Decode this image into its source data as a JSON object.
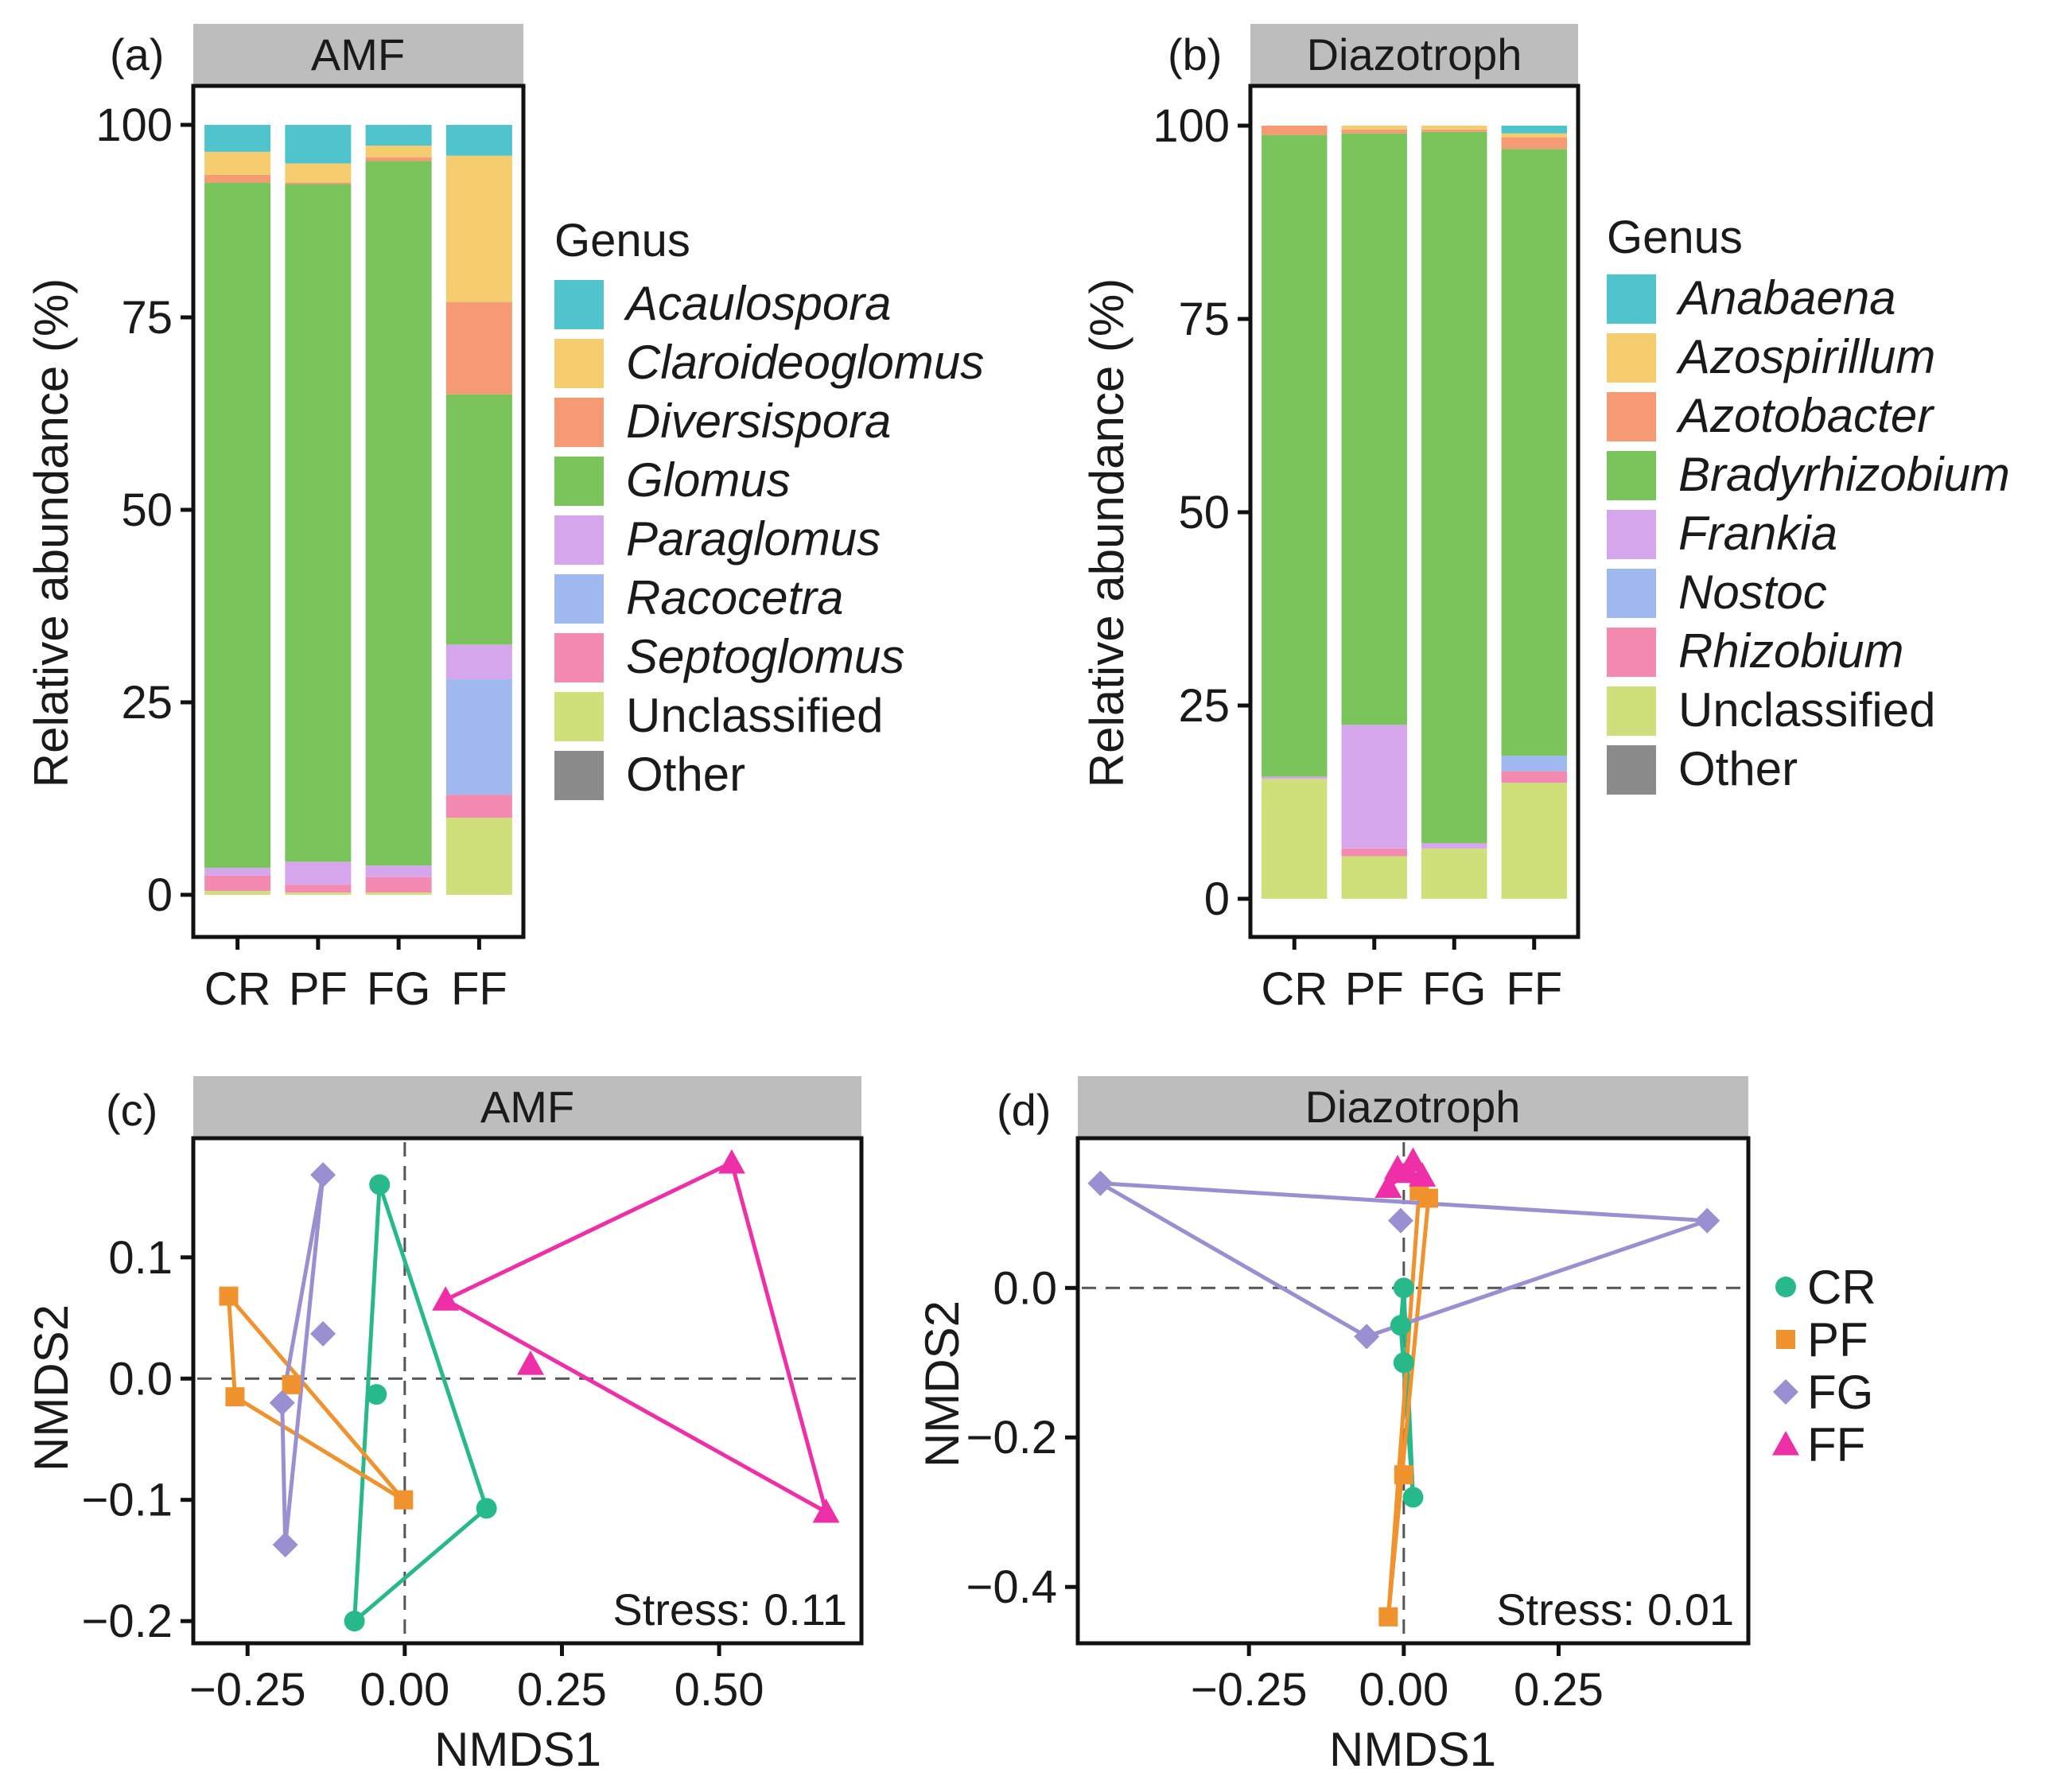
{
  "colors": {
    "Acaulospora": "#4fc4cc",
    "Claroideoglomus": "#f5cd6f",
    "Diversispora": "#f59a72",
    "Glomus": "#79c55c",
    "Paraglomus": "#d6a6ec",
    "Racocetra": "#9fb8f0",
    "Septoglomus": "#f58ab0",
    "Unclassified": "#cfe07a",
    "Other": "#8a8a8a",
    "Anabaena": "#4fc4cc",
    "Azospirillum": "#f5cd6f",
    "Azotobacter": "#f59a72",
    "Bradyrhizobium": "#79c55c",
    "Frankia": "#d6a6ec",
    "Nostoc": "#9fb8f0",
    "Rhizobium": "#f58ab0",
    "CR": "#27b98a",
    "PF": "#f0922e",
    "FG": "#9a8fd0",
    "FF": "#ee2fa8"
  },
  "chart_data": [
    {
      "type": "bar",
      "panel_label": "(a)",
      "title": "AMF",
      "ylabel": "Relative abundance (%)",
      "xlabel": "",
      "ylim": [
        0,
        100
      ],
      "yticks": [
        "0",
        "25",
        "50",
        "75",
        "100"
      ],
      "categories": [
        "CR",
        "PF",
        "FG",
        "FF"
      ],
      "legend_title": "Genus",
      "legend_italic": [
        true,
        true,
        true,
        true,
        true,
        true,
        true,
        false,
        false
      ],
      "series": [
        {
          "name": "Unclassified",
          "values": [
            0.5,
            0.3,
            0.3,
            10
          ]
        },
        {
          "name": "Septoglomus",
          "values": [
            2,
            1,
            2,
            3
          ]
        },
        {
          "name": "Racocetra",
          "values": [
            0,
            0,
            0,
            15
          ]
        },
        {
          "name": "Paraglomus",
          "values": [
            1,
            3,
            1.5,
            4.5
          ]
        },
        {
          "name": "Glomus",
          "values": [
            89,
            88,
            91.5,
            32.5
          ]
        },
        {
          "name": "Diversispora",
          "values": [
            1,
            0.2,
            0.5,
            12
          ]
        },
        {
          "name": "Claroideoglomus",
          "values": [
            3,
            2.5,
            1.5,
            19
          ]
        },
        {
          "name": "Acaulospora",
          "values": [
            3.5,
            5,
            2.7,
            4
          ]
        },
        {
          "name": "Other",
          "values": [
            0,
            0,
            0,
            0
          ]
        }
      ],
      "legend_order": [
        "Acaulospora",
        "Claroideoglomus",
        "Diversispora",
        "Glomus",
        "Paraglomus",
        "Racocetra",
        "Septoglomus",
        "Unclassified",
        "Other"
      ]
    },
    {
      "type": "bar",
      "panel_label": "(b)",
      "title": "Diazotroph",
      "ylabel": "Relative abundance (%)",
      "xlabel": "",
      "ylim": [
        0,
        100
      ],
      "yticks": [
        "0",
        "25",
        "50",
        "75",
        "100"
      ],
      "categories": [
        "CR",
        "PF",
        "FG",
        "FF"
      ],
      "legend_title": "Genus",
      "legend_italic": [
        true,
        true,
        true,
        true,
        true,
        true,
        true,
        false,
        false
      ],
      "series": [
        {
          "name": "Unclassified",
          "values": [
            15.5,
            5.5,
            6.5,
            15
          ]
        },
        {
          "name": "Rhizobium",
          "values": [
            0,
            1,
            0,
            1.5
          ]
        },
        {
          "name": "Nostoc",
          "values": [
            0,
            0,
            0,
            2
          ]
        },
        {
          "name": "Frankia",
          "values": [
            0.3,
            16,
            0.7,
            0
          ]
        },
        {
          "name": "Bradyrhizobium",
          "values": [
            83,
            76.5,
            92,
            78.5
          ]
        },
        {
          "name": "Azotobacter",
          "values": [
            1.2,
            0.5,
            0.3,
            1.5
          ]
        },
        {
          "name": "Azospirillum",
          "values": [
            0,
            0.5,
            0.5,
            0.5
          ]
        },
        {
          "name": "Anabaena",
          "values": [
            0,
            0,
            0,
            1
          ]
        },
        {
          "name": "Other",
          "values": [
            0,
            0,
            0,
            0
          ]
        }
      ],
      "legend_order": [
        "Anabaena",
        "Azospirillum",
        "Azotobacter",
        "Bradyrhizobium",
        "Frankia",
        "Nostoc",
        "Rhizobium",
        "Unclassified",
        "Other"
      ]
    },
    {
      "type": "scatter",
      "panel_label": "(c)",
      "title": "AMF",
      "xlabel": "NMDS1",
      "ylabel": "NMDS2",
      "xlim": [
        -0.33,
        0.72
      ],
      "ylim": [
        -0.215,
        0.195
      ],
      "xticks": [
        -0.25,
        0.0,
        0.25,
        0.5
      ],
      "xtick_labels": [
        "−0.25",
        "0.00",
        "0.25",
        "0.50"
      ],
      "yticks": [
        -0.2,
        -0.1,
        0.0,
        0.1
      ],
      "ytick_labels": [
        "−0.2",
        "−0.1",
        "0.0",
        "0.1"
      ],
      "annotation": "Stress: 0.11",
      "series": [
        {
          "name": "CR",
          "points": [
            [
              -0.04,
              0.16
            ],
            [
              -0.045,
              -0.013
            ],
            [
              0.13,
              -0.107
            ],
            [
              -0.08,
              -0.2
            ]
          ],
          "hull": [
            0,
            2,
            3
          ]
        },
        {
          "name": "PF",
          "points": [
            [
              -0.28,
              0.068
            ],
            [
              -0.18,
              -0.005
            ],
            [
              -0.27,
              -0.015
            ],
            [
              -0.002,
              -0.1
            ]
          ],
          "hull": [
            0,
            3,
            2
          ]
        },
        {
          "name": "FG",
          "points": [
            [
              -0.13,
              0.168
            ],
            [
              -0.13,
              0.037
            ],
            [
              -0.195,
              -0.02
            ],
            [
              -0.19,
              -0.137
            ]
          ],
          "hull": [
            0,
            3,
            2
          ]
        },
        {
          "name": "FF",
          "points": [
            [
              0.065,
              0.065
            ],
            [
              0.2,
              0.012
            ],
            [
              0.52,
              0.178
            ],
            [
              0.67,
              -0.11
            ]
          ],
          "hull": [
            0,
            2,
            3
          ]
        }
      ]
    },
    {
      "type": "scatter",
      "panel_label": "(d)",
      "title": "Diazotroph",
      "xlabel": "NMDS1",
      "ylabel": "NMDS2",
      "xlim": [
        -0.52,
        0.55
      ],
      "ylim": [
        -0.47,
        0.195
      ],
      "xticks": [
        -0.25,
        0.0,
        0.25
      ],
      "xtick_labels": [
        "−0.25",
        "0.00",
        "0.25"
      ],
      "yticks": [
        -0.4,
        -0.2,
        0.0
      ],
      "ytick_labels": [
        "−0.4",
        "−0.2",
        "0.0"
      ],
      "annotation": "Stress: 0.01",
      "legend_order": [
        "CR",
        "PF",
        "FG",
        "FF"
      ],
      "series": [
        {
          "name": "CR",
          "points": [
            [
              0.0,
              0.0
            ],
            [
              -0.005,
              -0.05
            ],
            [
              0.0,
              -0.1
            ],
            [
              0.015,
              -0.28
            ]
          ],
          "hull": [
            0,
            1,
            3
          ]
        },
        {
          "name": "PF",
          "points": [
            [
              0.04,
              0.12
            ],
            [
              0.025,
              0.13
            ],
            [
              0.0,
              -0.25
            ],
            [
              -0.025,
              -0.44
            ]
          ],
          "hull": [
            0,
            1,
            3
          ]
        },
        {
          "name": "FG",
          "points": [
            [
              -0.49,
              0.14
            ],
            [
              -0.005,
              0.09
            ],
            [
              0.49,
              0.09
            ],
            [
              -0.06,
              -0.065
            ]
          ],
          "hull": [
            0,
            2,
            3
          ]
        },
        {
          "name": "FF",
          "points": [
            [
              -0.025,
              0.135
            ],
            [
              0.005,
              0.155
            ],
            [
              0.03,
              0.15
            ],
            [
              0.015,
              0.17
            ],
            [
              -0.01,
              0.16
            ]
          ],
          "hull": [
            0,
            1,
            2,
            3,
            4
          ]
        }
      ]
    }
  ]
}
